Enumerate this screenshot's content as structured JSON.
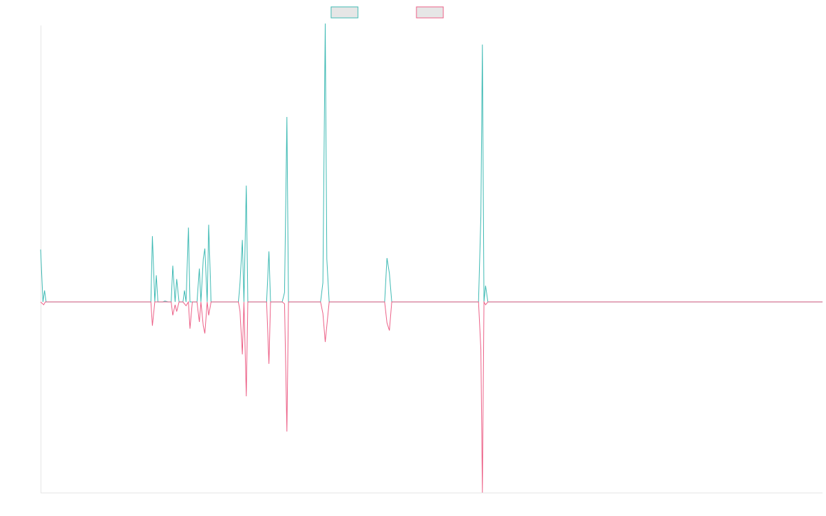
{
  "chart_data": {
    "type": "line",
    "title": "",
    "xlabel": "",
    "ylabel": "",
    "grid": false,
    "legend_placement": "top-center",
    "x_range": [
      0,
      100
    ],
    "ylim": [
      -2.0,
      2.9
    ],
    "series": [
      {
        "color": "#3cb9b3",
        "points": [
          [
            0,
            0.55
          ],
          [
            0.3,
            0
          ],
          [
            0.5,
            0.12
          ],
          [
            0.7,
            0
          ],
          [
            14.1,
            0
          ],
          [
            14.3,
            0.69
          ],
          [
            14.6,
            0
          ],
          [
            14.8,
            0.28
          ],
          [
            15.0,
            0
          ],
          [
            15.6,
            0
          ],
          [
            15.9,
            0.01
          ],
          [
            16.3,
            0
          ],
          [
            16.7,
            0
          ],
          [
            16.9,
            0.38
          ],
          [
            17.2,
            0
          ],
          [
            17.4,
            0.24
          ],
          [
            17.7,
            0
          ],
          [
            18.2,
            0
          ],
          [
            18.4,
            0.12
          ],
          [
            18.6,
            0
          ],
          [
            18.9,
            0.78
          ],
          [
            19.1,
            0
          ],
          [
            20.0,
            0
          ],
          [
            20.3,
            0.35
          ],
          [
            20.5,
            0
          ],
          [
            20.8,
            0.45
          ],
          [
            21.0,
            0.56
          ],
          [
            21.3,
            0
          ],
          [
            21.5,
            0.81
          ],
          [
            21.8,
            0
          ],
          [
            25.3,
            0
          ],
          [
            25.5,
            0.2
          ],
          [
            25.8,
            0.65
          ],
          [
            26.0,
            0
          ],
          [
            26.3,
            1.22
          ],
          [
            26.5,
            0
          ],
          [
            28.9,
            0
          ],
          [
            29.2,
            0.53
          ],
          [
            29.4,
            0
          ],
          [
            30.9,
            0
          ],
          [
            31.2,
            0.1
          ],
          [
            31.5,
            1.94
          ],
          [
            31.7,
            0
          ],
          [
            35.8,
            0
          ],
          [
            36.1,
            0.2
          ],
          [
            36.4,
            2.92
          ],
          [
            36.6,
            0.45
          ],
          [
            36.9,
            0
          ],
          [
            44.0,
            0
          ],
          [
            44.3,
            0.46
          ],
          [
            44.6,
            0.3
          ],
          [
            44.9,
            0
          ],
          [
            56.0,
            0
          ],
          [
            56.3,
            0.9
          ],
          [
            56.5,
            2.7
          ],
          [
            56.7,
            0
          ],
          [
            56.9,
            0.17
          ],
          [
            57.2,
            0
          ],
          [
            100,
            0
          ]
        ]
      },
      {
        "color": "#ec5f86",
        "points": [
          [
            0,
            0
          ],
          [
            0.4,
            -0.03
          ],
          [
            0.6,
            0
          ],
          [
            14.1,
            0
          ],
          [
            14.3,
            -0.25
          ],
          [
            14.6,
            0
          ],
          [
            15.4,
            0
          ],
          [
            15.9,
            0
          ],
          [
            16.3,
            0
          ],
          [
            16.7,
            0
          ],
          [
            16.9,
            -0.14
          ],
          [
            17.2,
            -0.03
          ],
          [
            17.4,
            -0.1
          ],
          [
            17.7,
            0
          ],
          [
            18.2,
            0
          ],
          [
            18.6,
            -0.04
          ],
          [
            18.9,
            0
          ],
          [
            19.1,
            -0.28
          ],
          [
            19.4,
            0
          ],
          [
            20.0,
            0
          ],
          [
            20.3,
            -0.21
          ],
          [
            20.5,
            0
          ],
          [
            20.8,
            -0.25
          ],
          [
            21.0,
            -0.33
          ],
          [
            21.3,
            0
          ],
          [
            21.5,
            -0.14
          ],
          [
            21.8,
            0
          ],
          [
            25.3,
            0
          ],
          [
            25.5,
            -0.1
          ],
          [
            25.8,
            -0.55
          ],
          [
            26.0,
            0
          ],
          [
            26.3,
            -0.99
          ],
          [
            26.5,
            0
          ],
          [
            28.9,
            0
          ],
          [
            29.2,
            -0.65
          ],
          [
            29.4,
            0
          ],
          [
            30.9,
            0
          ],
          [
            31.2,
            -0.02
          ],
          [
            31.5,
            -1.36
          ],
          [
            31.7,
            0
          ],
          [
            35.8,
            0
          ],
          [
            36.1,
            -0.12
          ],
          [
            36.4,
            -0.42
          ],
          [
            36.6,
            -0.25
          ],
          [
            36.9,
            0
          ],
          [
            44.0,
            0
          ],
          [
            44.3,
            -0.22
          ],
          [
            44.6,
            -0.3
          ],
          [
            44.9,
            0
          ],
          [
            56.0,
            0
          ],
          [
            56.3,
            -0.5
          ],
          [
            56.5,
            -2.0
          ],
          [
            56.7,
            0
          ],
          [
            56.9,
            -0.03
          ],
          [
            57.2,
            0
          ],
          [
            100,
            0
          ]
        ]
      }
    ]
  }
}
